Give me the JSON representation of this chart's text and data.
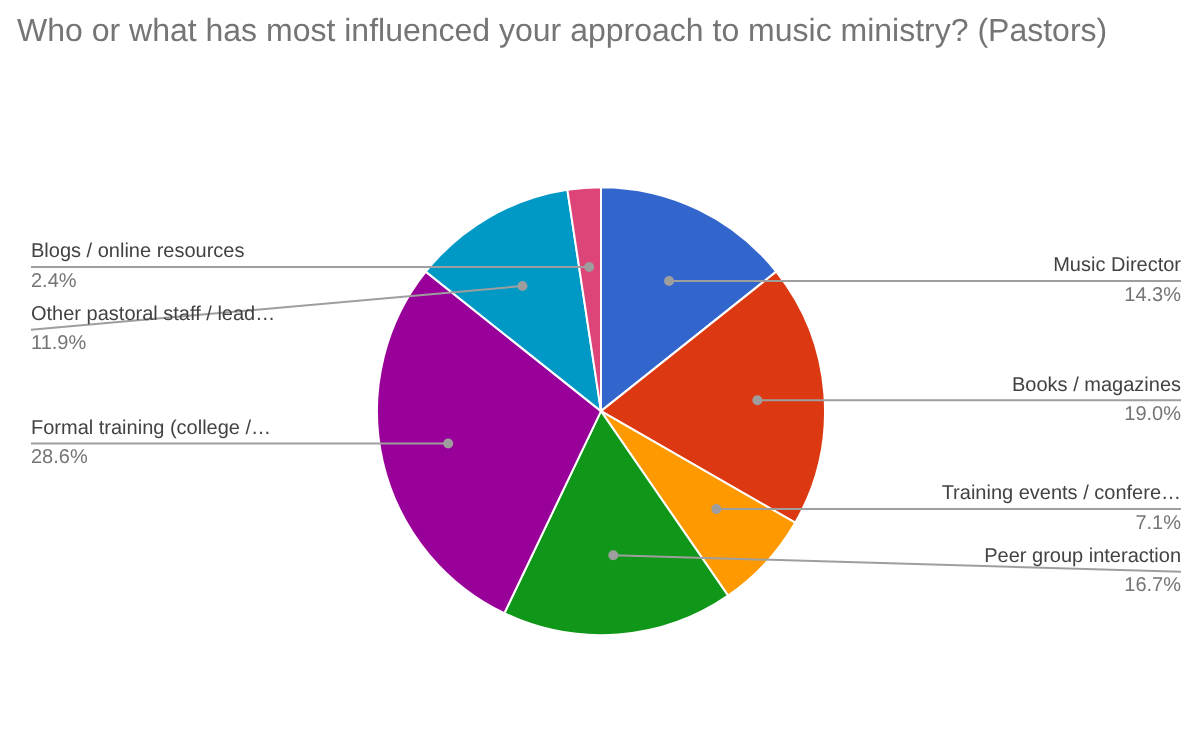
{
  "chart_data": {
    "type": "pie",
    "title": "Who or what has most influenced your approach to music ministry? (Pastors)",
    "categories": [
      "Music Director",
      "Books / magazines",
      "Training events / confere…",
      "Peer group interaction",
      "Formal training (college /…",
      "Other pastoral staff / lead…",
      "Blogs / online resources"
    ],
    "values": [
      14.3,
      19.0,
      7.1,
      16.7,
      28.6,
      11.9,
      2.4
    ],
    "colors": [
      "#3366cc",
      "#dc3912",
      "#ff9900",
      "#109618",
      "#990099",
      "#0099c6",
      "#dd4477"
    ],
    "value_labels": [
      "14.3%",
      "19.0%",
      "7.1%",
      "16.7%",
      "28.6%",
      "11.9%",
      "2.4%"
    ]
  }
}
